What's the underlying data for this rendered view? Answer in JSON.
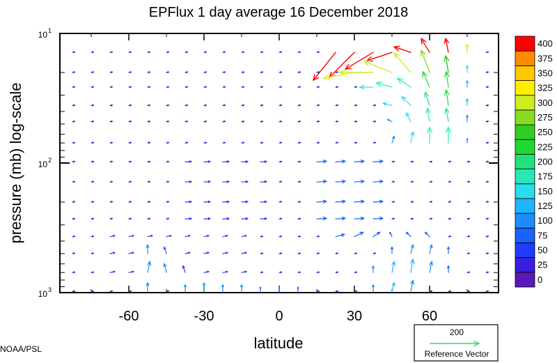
{
  "chart_data": {
    "type": "vector-field",
    "title": "EPFlux  1 day average  16 December  2018",
    "xlabel": "latitude",
    "ylabel": "pressure (mb)  log-scale",
    "x_ticks": [
      -60,
      -30,
      0,
      30,
      60
    ],
    "x_tick_labels": [
      "-60",
      "-30",
      "0",
      "30",
      "60"
    ],
    "xlim": [
      -87.5,
      87.5
    ],
    "ylim": [
      1000,
      10
    ],
    "y_scale": "log",
    "y_tick_labels": [
      {
        "value": 10,
        "base": "10",
        "exp": "1"
      },
      {
        "value": 100,
        "base": "10",
        "exp": "2"
      },
      {
        "value": 1000,
        "base": "10",
        "exp": "3"
      }
    ],
    "pressure_levels": [
      14,
      20,
      26,
      36,
      48,
      70,
      98,
      140,
      200,
      270,
      370,
      500,
      700,
      980
    ],
    "lat_step": 7.5,
    "colorbar": {
      "levels": [
        0,
        25,
        50,
        75,
        100,
        125,
        150,
        175,
        200,
        225,
        250,
        275,
        300,
        325,
        350,
        375,
        400
      ],
      "colors": [
        "#5a18b8",
        "#3a1ee0",
        "#1f3cff",
        "#1a62ff",
        "#1c8cff",
        "#20b4ff",
        "#2adcee",
        "#28e8b8",
        "#22e07a",
        "#1ed832",
        "#33cc22",
        "#88dd22",
        "#ccee22",
        "#ffee00",
        "#ffc800",
        "#ff8c00",
        "#ff0000"
      ]
    },
    "reference_vector": {
      "value": 200,
      "label": "Reference Vector",
      "color": "#22e07a"
    },
    "grid": false,
    "legend": "none",
    "arrows": [
      {
        "lat": 22.5,
        "p": 14,
        "u": -8,
        "v": -10,
        "m": 430
      },
      {
        "lat": 30,
        "p": 14,
        "u": -9,
        "v": -9,
        "m": 440
      },
      {
        "lat": 37.5,
        "p": 14,
        "u": -10,
        "v": -6,
        "m": 450
      },
      {
        "lat": 45,
        "p": 14,
        "u": -9,
        "v": -3,
        "m": 450
      },
      {
        "lat": 52.5,
        "p": 14,
        "u": -6,
        "v": 2,
        "m": 440
      },
      {
        "lat": 60,
        "p": 14,
        "u": -3,
        "v": 5,
        "m": 420
      },
      {
        "lat": 67.5,
        "p": 14,
        "u": -1,
        "v": 5,
        "m": 400
      },
      {
        "lat": 75,
        "p": 14,
        "u": 0,
        "v": 3,
        "m": 300
      },
      {
        "lat": 30,
        "p": 20,
        "u": -11,
        "v": -2,
        "m": 330
      },
      {
        "lat": 37.5,
        "p": 20,
        "u": -12,
        "v": 0,
        "m": 320
      },
      {
        "lat": 45,
        "p": 20,
        "u": -10,
        "v": 4,
        "m": 310
      },
      {
        "lat": 52.5,
        "p": 20,
        "u": -6,
        "v": 7,
        "m": 300
      },
      {
        "lat": 60,
        "p": 20,
        "u": -3,
        "v": 8,
        "m": 290
      },
      {
        "lat": 67.5,
        "p": 20,
        "u": -1,
        "v": 6,
        "m": 260
      },
      {
        "lat": 75,
        "p": 20,
        "u": 0,
        "v": 3,
        "m": 150
      },
      {
        "lat": 37.5,
        "p": 26,
        "u": -6,
        "v": 0,
        "m": 150
      },
      {
        "lat": 45,
        "p": 26,
        "u": -7,
        "v": 2,
        "m": 175
      },
      {
        "lat": 52.5,
        "p": 26,
        "u": -6,
        "v": 4,
        "m": 190
      },
      {
        "lat": 60,
        "p": 26,
        "u": -3,
        "v": 7,
        "m": 230
      },
      {
        "lat": 67.5,
        "p": 26,
        "u": -1,
        "v": 7,
        "m": 230
      },
      {
        "lat": 75,
        "p": 26,
        "u": 0,
        "v": 3,
        "m": 140
      },
      {
        "lat": 45,
        "p": 36,
        "u": -4,
        "v": 1,
        "m": 150
      },
      {
        "lat": 52.5,
        "p": 36,
        "u": -4,
        "v": 4,
        "m": 165
      },
      {
        "lat": 60,
        "p": 36,
        "u": -2,
        "v": 6,
        "m": 200
      },
      {
        "lat": 67.5,
        "p": 36,
        "u": -1,
        "v": 7,
        "m": 230
      },
      {
        "lat": 75,
        "p": 36,
        "u": 0,
        "v": 3,
        "m": 130
      },
      {
        "lat": 45,
        "p": 48,
        "u": -2,
        "v": 1,
        "m": 120
      },
      {
        "lat": 52.5,
        "p": 48,
        "u": -2,
        "v": 4,
        "m": 150
      },
      {
        "lat": 60,
        "p": 48,
        "u": -1,
        "v": 6,
        "m": 190
      },
      {
        "lat": 67.5,
        "p": 48,
        "u": -1,
        "v": 6,
        "m": 220
      },
      {
        "lat": 75,
        "p": 48,
        "u": 0,
        "v": 3,
        "m": 120
      },
      {
        "lat": 45,
        "p": 70,
        "u": 1,
        "v": 3,
        "m": 110
      },
      {
        "lat": 52.5,
        "p": 70,
        "u": 1,
        "v": 5,
        "m": 160
      },
      {
        "lat": 60,
        "p": 70,
        "u": 0,
        "v": 7,
        "m": 190
      },
      {
        "lat": 67.5,
        "p": 70,
        "u": 0,
        "v": 7,
        "m": 190
      },
      {
        "lat": 75,
        "p": 70,
        "u": 0,
        "v": 2,
        "m": 100
      },
      {
        "lat": 22.5,
        "p": 370,
        "u": 4,
        "v": 1,
        "m": 75
      },
      {
        "lat": 30,
        "p": 370,
        "u": 4,
        "v": 2,
        "m": 90
      },
      {
        "lat": 37.5,
        "p": 370,
        "u": 3,
        "v": 2,
        "m": 85
      },
      {
        "lat": 45,
        "p": 370,
        "u": -1,
        "v": 2,
        "m": 75
      },
      {
        "lat": 52.5,
        "p": 370,
        "u": -2,
        "v": 2,
        "m": 80
      },
      {
        "lat": 60,
        "p": 370,
        "u": -2,
        "v": 2,
        "m": 75
      },
      {
        "lat": 45,
        "p": 500,
        "u": 0,
        "v": 3,
        "m": 90
      },
      {
        "lat": 52.5,
        "p": 500,
        "u": 1,
        "v": 4,
        "m": 110
      },
      {
        "lat": 60,
        "p": 500,
        "u": 1,
        "v": 4,
        "m": 100
      },
      {
        "lat": 67.5,
        "p": 500,
        "u": 0,
        "v": 3,
        "m": 80
      },
      {
        "lat": 37.5,
        "p": 700,
        "u": 0,
        "v": 3,
        "m": 110
      },
      {
        "lat": 45,
        "p": 700,
        "u": 1,
        "v": 5,
        "m": 130
      },
      {
        "lat": 52.5,
        "p": 700,
        "u": 1,
        "v": 6,
        "m": 140
      },
      {
        "lat": 60,
        "p": 700,
        "u": 1,
        "v": 5,
        "m": 120
      },
      {
        "lat": 67.5,
        "p": 700,
        "u": 0,
        "v": 3,
        "m": 90
      },
      {
        "lat": 37.5,
        "p": 980,
        "u": 0,
        "v": 3,
        "m": 120
      },
      {
        "lat": 45,
        "p": 980,
        "u": 1,
        "v": 4,
        "m": 125
      },
      {
        "lat": 52.5,
        "p": 980,
        "u": 1,
        "v": 5,
        "m": 120
      },
      {
        "lat": -52.5,
        "p": 500,
        "u": 0,
        "v": 4,
        "m": 100
      },
      {
        "lat": -45,
        "p": 500,
        "u": -1,
        "v": 3,
        "m": 80
      },
      {
        "lat": -52.5,
        "p": 700,
        "u": 1,
        "v": 5,
        "m": 120
      },
      {
        "lat": -45,
        "p": 700,
        "u": -1,
        "v": 4,
        "m": 100
      },
      {
        "lat": -37.5,
        "p": 700,
        "u": -1,
        "v": 3,
        "m": 70
      },
      {
        "lat": -52.5,
        "p": 980,
        "u": 0,
        "v": 4,
        "m": 110
      },
      {
        "lat": -37.5,
        "p": 980,
        "u": 0,
        "v": 3,
        "m": 120
      },
      {
        "lat": -30,
        "p": 980,
        "u": 0,
        "v": 4,
        "m": 130
      },
      {
        "lat": -22.5,
        "p": 980,
        "u": 0,
        "v": 3,
        "m": 110
      },
      {
        "lat": -15,
        "p": 980,
        "u": 0,
        "v": 3,
        "m": 100
      },
      {
        "lat": -7.5,
        "p": 980,
        "u": 0,
        "v": 2,
        "m": 90
      },
      {
        "lat": 0,
        "p": 980,
        "u": 0,
        "v": 2,
        "m": 100
      },
      {
        "lat": 7.5,
        "p": 980,
        "u": 0,
        "v": 2,
        "m": 90
      }
    ]
  },
  "footer": {
    "credit": "NOAA/PSL"
  }
}
